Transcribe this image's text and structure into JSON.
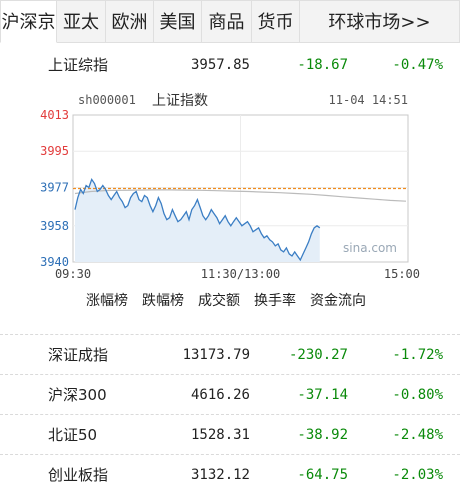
{
  "tabs": [
    {
      "label": "沪深京",
      "active": true
    },
    {
      "label": "亚太"
    },
    {
      "label": "欧洲"
    },
    {
      "label": "美国"
    },
    {
      "label": "商品"
    },
    {
      "label": "货币"
    },
    {
      "label": "环球市场>>"
    }
  ],
  "main_index": {
    "name": "上证综指",
    "price": "3957.85",
    "change": "-18.67",
    "percent": "-0.47%"
  },
  "chart": {
    "code": "sh000001",
    "title": "上证指数",
    "datetime": "11-04 14:51",
    "watermark": "sina.com",
    "y_ticks": [
      "4013",
      "3995",
      "3977",
      "3958",
      "3940"
    ],
    "x_ticks": [
      "09:30",
      "11:30/13:00",
      "15:00"
    ],
    "colors": {
      "price_line": "#3b7ec4",
      "fill": "#e4eef8",
      "avg_line": "#f08c1e",
      "ma_line": "#bbbbbb",
      "red_tick": "#e23b3b",
      "blue_tick": "#2d6fb6"
    }
  },
  "chart_data": {
    "type": "line",
    "xlabel": "",
    "ylabel": "",
    "ylim": [
      3940,
      4013
    ],
    "x_ticks": [
      "09:30",
      "11:30/13:00",
      "15:00"
    ],
    "prev_close": 3976.5,
    "series": [
      {
        "values": [
          3966,
          3972,
          3976,
          3974,
          3978,
          3977,
          3981,
          3979,
          3975,
          3976,
          3978,
          3976,
          3973,
          3971,
          3973,
          3975,
          3972,
          3970,
          3967,
          3968,
          3972,
          3974,
          3975,
          3971,
          3970,
          3973,
          3972,
          3968,
          3965,
          3968,
          3972,
          3969,
          3964,
          3961,
          3962,
          3966,
          3963,
          3960,
          3961,
          3963,
          3965,
          3961,
          3966,
          3968,
          3971,
          3967,
          3963,
          3961,
          3963,
          3966,
          3964,
          3962,
          3959,
          3961,
          3963,
          3960,
          3958,
          3960,
          3962,
          3960,
          3958,
          3959,
          3960,
          3958,
          3955,
          3956,
          3957,
          3954,
          3952,
          3953,
          3951,
          3950,
          3948,
          3949,
          3946,
          3945,
          3947,
          3944,
          3943,
          3945,
          3943,
          3941,
          3944,
          3947,
          3950,
          3954,
          3957,
          3958,
          3957
        ]
      },
      {
        "values": [
          3974,
          3975,
          3975.5,
          3975.6,
          3975.7,
          3975.8,
          3975.8,
          3975.7,
          3975.6,
          3975.4,
          3975.2,
          3975,
          3974.7,
          3974.4,
          3974,
          3973.6,
          3973,
          3972.4,
          3971.8,
          3971.2,
          3970.6,
          3970.2
        ]
      }
    ]
  },
  "rank_links": [
    "涨幅榜",
    "跌幅榜",
    "成交额",
    "换手率",
    "资金流向"
  ],
  "indices": [
    {
      "name": "深证成指",
      "price": "13173.79",
      "change": "-230.27",
      "percent": "-1.72%"
    },
    {
      "name": "沪深300",
      "price": "4616.26",
      "change": "-37.14",
      "percent": "-0.80%"
    },
    {
      "name": "北证50",
      "price": "1528.31",
      "change": "-38.92",
      "percent": "-2.48%"
    },
    {
      "name": "创业板指",
      "price": "3132.12",
      "change": "-64.75",
      "percent": "-2.03%"
    }
  ]
}
